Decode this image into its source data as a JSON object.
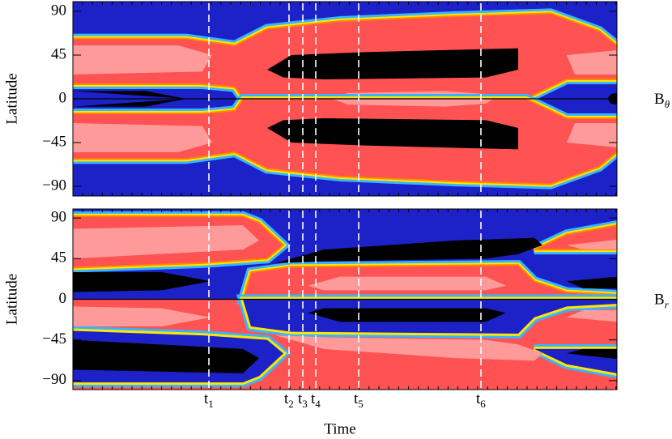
{
  "chart_data": [
    {
      "type": "contour",
      "ylabel": "Latitude",
      "field_label": {
        "symbol": "B",
        "subscript": "θ"
      },
      "ylim": [
        -100,
        100
      ],
      "yticks": [
        {
          "value": -90,
          "label": "−90"
        },
        {
          "value": -45,
          "label": "−45"
        },
        0,
        45,
        90
      ]
    },
    {
      "type": "contour",
      "ylabel": "Latitude",
      "field_label": {
        "symbol": "B",
        "subscript": "r"
      },
      "ylim": [
        -100,
        100
      ],
      "yticks": [
        {
          "value": -90,
          "label": "−90"
        },
        {
          "value": -45,
          "label": "−45"
        },
        0,
        45,
        90
      ],
      "xlabel": "Time",
      "markers": [
        {
          "symbol": "t",
          "subscript": "1"
        },
        {
          "symbol": "t",
          "subscript": "2"
        },
        {
          "symbol": "t",
          "subscript": "3"
        },
        {
          "symbol": "t",
          "subscript": "4"
        },
        {
          "symbol": "t",
          "subscript": "5"
        },
        {
          "symbol": "t",
          "subscript": "6"
        }
      ]
    }
  ]
}
